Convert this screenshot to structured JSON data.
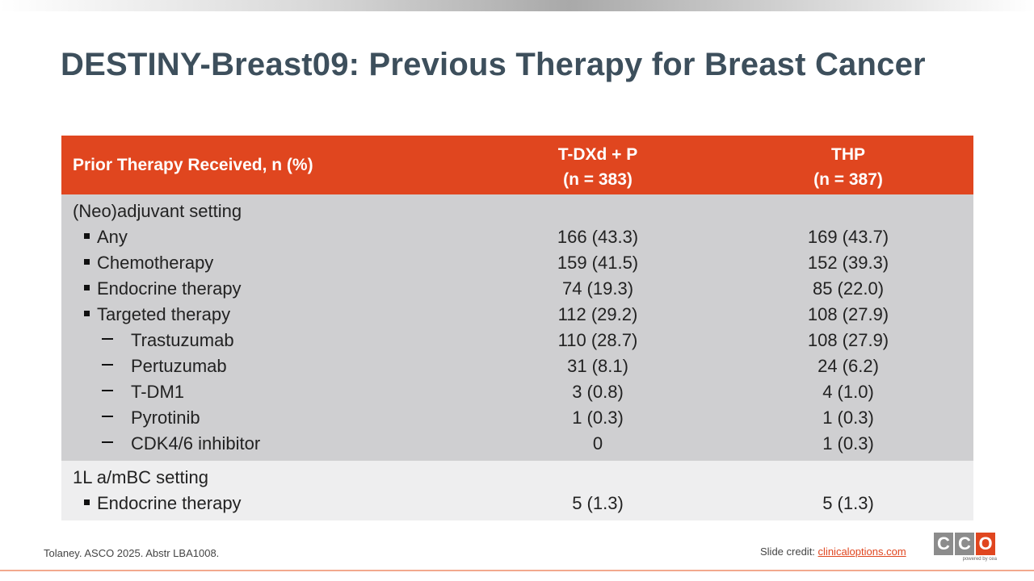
{
  "title": "DESTINY-Breast09: Previous Therapy for Breast Cancer",
  "table": {
    "header": {
      "label": "Prior Therapy Received, n (%)",
      "col1_line1": "T-DXd + P",
      "col1_line2": "(n = 383)",
      "col2_line1": "THP",
      "col2_line2": "(n = 387)"
    },
    "sections": [
      {
        "title": "(Neo)adjuvant setting",
        "rows": [
          {
            "label": "Any",
            "level": "bullet",
            "tdxd_p": "166 (43.3)",
            "thp": "169 (43.7)"
          },
          {
            "label": "Chemotherapy",
            "level": "bullet",
            "tdxd_p": "159 (41.5)",
            "thp": "152 (39.3)"
          },
          {
            "label": "Endocrine therapy",
            "level": "bullet",
            "tdxd_p": "74 (19.3)",
            "thp": "85 (22.0)"
          },
          {
            "label": "Targeted therapy",
            "level": "bullet",
            "tdxd_p": "112 (29.2)",
            "thp": "108 (27.9)"
          },
          {
            "label": "Trastuzumab",
            "level": "dash",
            "tdxd_p": "110 (28.7)",
            "thp": "108 (27.9)"
          },
          {
            "label": "Pertuzumab",
            "level": "dash",
            "tdxd_p": "31 (8.1)",
            "thp": "24 (6.2)"
          },
          {
            "label": "T-DM1",
            "level": "dash",
            "tdxd_p": "3 (0.8)",
            "thp": "4 (1.0)"
          },
          {
            "label": "Pyrotinib",
            "level": "dash",
            "tdxd_p": "1 (0.3)",
            "thp": "1 (0.3)"
          },
          {
            "label": "CDK4/6 inhibitor",
            "level": "dash",
            "tdxd_p": "0",
            "thp": "1 (0.3)"
          }
        ]
      },
      {
        "title": "1L a/mBC setting",
        "rows": [
          {
            "label": "Endocrine therapy",
            "level": "bullet",
            "tdxd_p": "5 (1.3)",
            "thp": "5 (1.3)"
          }
        ]
      }
    ]
  },
  "footer": {
    "citation": "Tolaney. ASCO 2025. Abstr LBA1008.",
    "credit_prefix": "Slide credit: ",
    "credit_link": "clinicaloptions.com",
    "logo_letters": [
      "C",
      "C",
      "O"
    ],
    "logo_sub": "powered by cea"
  },
  "colors": {
    "header_bg": "#e0461f",
    "section1_bg": "#cfcfd1",
    "section2_bg": "#eeeeef",
    "title": "#3d4f5c"
  }
}
